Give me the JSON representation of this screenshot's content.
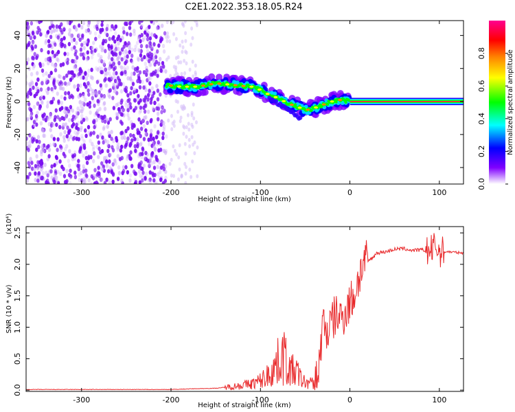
{
  "title": "C2E1.2022.353.18.05.R24",
  "chart_data": [
    {
      "type": "heatmap",
      "name": "spectrogram",
      "xlabel": "Height of straight line (km)",
      "ylabel": "Frequency (Hz)",
      "xlim": [
        -362,
        127
      ],
      "ylim": [
        -50,
        49
      ],
      "xticks": [
        -300,
        -200,
        -100,
        0,
        100
      ],
      "yticks": [
        -40,
        -20,
        0,
        20,
        40
      ],
      "ytick_labels": [
        "-40",
        "-20",
        "0",
        "20",
        "40"
      ],
      "xtick_labels": [
        "-300",
        "-200",
        "-100",
        "0",
        "100"
      ],
      "colorbar": {
        "label": "Normalized spectral amplitude",
        "range": [
          0,
          1
        ],
        "ticks": [
          0.0,
          0.2,
          0.4,
          0.6,
          0.8
        ],
        "tick_labels": [
          "0.0",
          "0.2",
          "0.4",
          "0.6",
          "0.8"
        ],
        "colormap": [
          "#ffffff",
          "#8000ff",
          "#0000ff",
          "#00ffff",
          "#00ff00",
          "#ffff00",
          "#ff8000",
          "#ff0000",
          "#ff0080"
        ]
      },
      "ridge": {
        "x": [
          -205,
          -190,
          -170,
          -150,
          -130,
          -110,
          -100,
          -90,
          -80,
          -70,
          -60,
          -50,
          -45,
          -40,
          -30,
          -20,
          -10,
          0,
          50,
          127
        ],
        "y": [
          10,
          9,
          9,
          11,
          10,
          9,
          7,
          4,
          2,
          -1,
          -3,
          -5,
          -5,
          -4,
          -2,
          0,
          1,
          0,
          0,
          0
        ]
      },
      "noise_x_range": [
        -362,
        -205
      ]
    },
    {
      "type": "line",
      "name": "snr",
      "xlabel": "Height of straight line (km)",
      "ylabel": "SNR (10 * v/v)",
      "multiplier_label": "(x10⁴)",
      "xlim": [
        -362,
        127
      ],
      "ylim": [
        -0.02,
        2.6
      ],
      "xticks": [
        -300,
        -200,
        -100,
        0,
        100
      ],
      "xtick_labels": [
        "-300",
        "-200",
        "-100",
        "0",
        "100"
      ],
      "yticks": [
        0.0,
        0.5,
        1.0,
        1.5,
        2.0,
        2.5
      ],
      "ytick_labels": [
        "0.0",
        "0.5",
        "1.0",
        "1.5",
        "2.0",
        "2.5"
      ],
      "series": [
        {
          "color": "#e8282a",
          "x": [
            -362,
            -300,
            -250,
            -200,
            -180,
            -150,
            -130,
            -110,
            -100,
            -90,
            -80,
            -75,
            -70,
            -65,
            -60,
            -55,
            -50,
            -45,
            -40,
            -35,
            -30,
            -25,
            -20,
            -15,
            -10,
            -5,
            0,
            5,
            10,
            15,
            20,
            25,
            30,
            40,
            50,
            60,
            70,
            80,
            90,
            95,
            100,
            110,
            127
          ],
          "y": [
            0.01,
            0.01,
            0.01,
            0.01,
            0.02,
            0.03,
            0.06,
            0.1,
            0.15,
            0.25,
            0.45,
            0.6,
            0.4,
            0.3,
            0.3,
            0.18,
            0.12,
            0.12,
            0.1,
            0.3,
            1.1,
            0.9,
            1.1,
            1.2,
            1.15,
            1.25,
            1.4,
            1.5,
            1.8,
            2.0,
            2.05,
            2.1,
            2.18,
            2.2,
            2.24,
            2.25,
            2.22,
            2.23,
            2.2,
            2.3,
            2.2,
            2.2,
            2.18
          ]
        }
      ]
    }
  ]
}
